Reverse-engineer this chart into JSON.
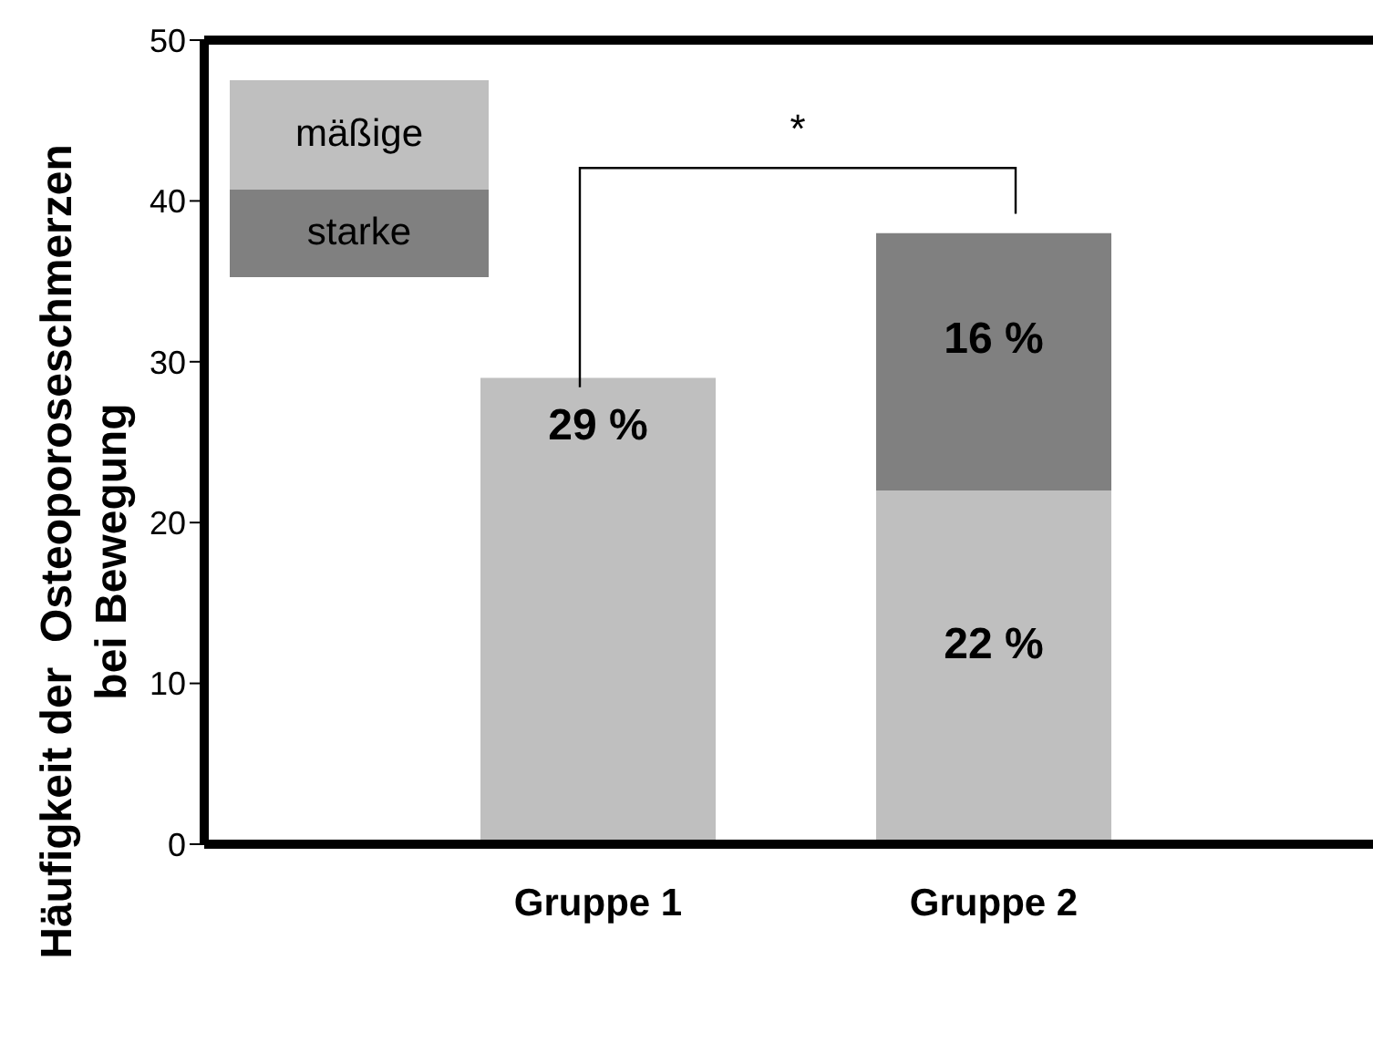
{
  "chart_data": {
    "type": "bar",
    "stacked": true,
    "ylabel": "Häufigkeit der  Osteoporoseschmerzen bei Bewegung",
    "categories": [
      "Gruppe 1",
      "Gruppe 2"
    ],
    "series": [
      {
        "name": "mäßige",
        "color": "#bfbfbf",
        "values": [
          29,
          22
        ],
        "value_labels": [
          "29 %",
          "22 %"
        ]
      },
      {
        "name": "starke",
        "color": "#808080",
        "values": [
          null,
          16
        ],
        "value_labels": [
          null,
          "16 %"
        ]
      }
    ],
    "ylim": [
      0,
      50
    ],
    "yticks": [
      0,
      10,
      20,
      30,
      40,
      50
    ],
    "grid": false,
    "legend": "top left",
    "annotations": [
      "*"
    ]
  }
}
